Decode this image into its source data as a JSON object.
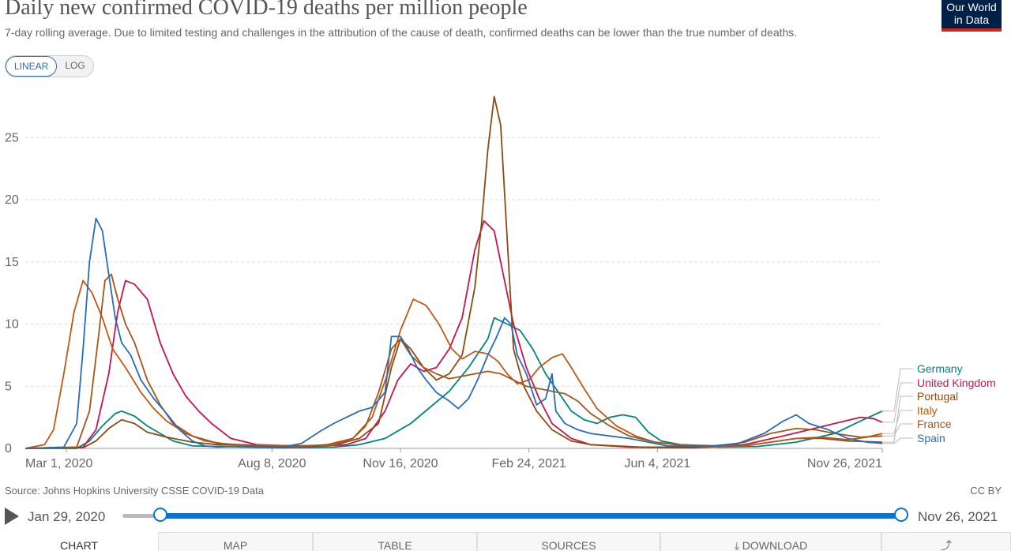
{
  "header": {
    "title": "Daily new confirmed COVID-19 deaths per million people",
    "subtitle": "7-day rolling average. Due to limited testing and challenges in the attribution of the cause of death, confirmed deaths can be lower than the true number of deaths.",
    "logo_line1": "Our World",
    "logo_line2": "in Data"
  },
  "controls": {
    "linear_label": "LINEAR",
    "log_label": "LOG",
    "active": "linear"
  },
  "colors": {
    "Germany": "#00847e",
    "United Kingdom": "#c8134f",
    "Portugal": "#8c4a13",
    "Italy": "#be5915",
    "France": "#a2561a",
    "Spain": "#286bbb",
    "grid": "#dddddd"
  },
  "chart_data": {
    "type": "line",
    "title": "Daily new confirmed COVID-19 deaths per million people",
    "xlabel": "",
    "ylabel": "",
    "x_range": [
      "2020-01-29",
      "2021-11-26"
    ],
    "ylim": [
      0,
      28.5
    ],
    "y_ticks": [
      0,
      5,
      10,
      15,
      20,
      25
    ],
    "x_tick_labels": [
      "Mar 1, 2020",
      "Aug 8, 2020",
      "Nov 16, 2020",
      "Feb 24, 2021",
      "Jun 4, 2021",
      "Nov 26, 2021"
    ],
    "x_tick_days": [
      32,
      192,
      292,
      392,
      492,
      667
    ],
    "legend_position": "right",
    "series": [
      {
        "name": "Germany",
        "points": [
          [
            0,
            0
          ],
          [
            40,
            0
          ],
          [
            50,
            0.6
          ],
          [
            60,
            1.8
          ],
          [
            70,
            2.8
          ],
          [
            75,
            3.0
          ],
          [
            85,
            2.6
          ],
          [
            95,
            1.8
          ],
          [
            105,
            1.2
          ],
          [
            115,
            0.6
          ],
          [
            130,
            0.2
          ],
          [
            200,
            0.05
          ],
          [
            240,
            0.1
          ],
          [
            260,
            0.3
          ],
          [
            280,
            0.8
          ],
          [
            300,
            2.0
          ],
          [
            315,
            3.3
          ],
          [
            330,
            4.6
          ],
          [
            345,
            6.5
          ],
          [
            360,
            8.8
          ],
          [
            365,
            10.5
          ],
          [
            375,
            10.0
          ],
          [
            385,
            9.5
          ],
          [
            395,
            8.0
          ],
          [
            405,
            6.0
          ],
          [
            415,
            4.5
          ],
          [
            425,
            3.0
          ],
          [
            435,
            2.3
          ],
          [
            445,
            2.0
          ],
          [
            455,
            2.5
          ],
          [
            465,
            2.7
          ],
          [
            475,
            2.5
          ],
          [
            485,
            1.3
          ],
          [
            495,
            0.6
          ],
          [
            510,
            0.3
          ],
          [
            540,
            0.1
          ],
          [
            570,
            0.15
          ],
          [
            600,
            0.5
          ],
          [
            630,
            1.2
          ],
          [
            650,
            2.2
          ],
          [
            667,
            3.0
          ]
        ]
      },
      {
        "name": "United Kingdom",
        "points": [
          [
            0,
            0
          ],
          [
            45,
            0.1
          ],
          [
            55,
            1.5
          ],
          [
            65,
            6.0
          ],
          [
            72,
            11.0
          ],
          [
            78,
            13.5
          ],
          [
            85,
            13.2
          ],
          [
            95,
            12.0
          ],
          [
            105,
            8.5
          ],
          [
            115,
            6.0
          ],
          [
            125,
            4.2
          ],
          [
            135,
            3.0
          ],
          [
            145,
            2.0
          ],
          [
            160,
            0.8
          ],
          [
            180,
            0.3
          ],
          [
            220,
            0.15
          ],
          [
            250,
            0.3
          ],
          [
            265,
            0.8
          ],
          [
            280,
            3.0
          ],
          [
            290,
            5.5
          ],
          [
            300,
            6.8
          ],
          [
            310,
            6.2
          ],
          [
            320,
            6.5
          ],
          [
            330,
            8.0
          ],
          [
            340,
            10.5
          ],
          [
            350,
            16.0
          ],
          [
            357,
            18.3
          ],
          [
            365,
            17.5
          ],
          [
            372,
            14.0
          ],
          [
            380,
            10.0
          ],
          [
            390,
            6.5
          ],
          [
            400,
            4.0
          ],
          [
            410,
            2.0
          ],
          [
            425,
            0.8
          ],
          [
            440,
            0.3
          ],
          [
            470,
            0.1
          ],
          [
            520,
            0.05
          ],
          [
            560,
            0.3
          ],
          [
            590,
            1.0
          ],
          [
            610,
            1.5
          ],
          [
            630,
            2.0
          ],
          [
            650,
            2.5
          ],
          [
            660,
            2.4
          ],
          [
            667,
            2.1
          ]
        ]
      },
      {
        "name": "Portugal",
        "points": [
          [
            0,
            0
          ],
          [
            45,
            0.05
          ],
          [
            55,
            0.6
          ],
          [
            65,
            1.6
          ],
          [
            75,
            2.3
          ],
          [
            85,
            2.0
          ],
          [
            95,
            1.3
          ],
          [
            110,
            0.9
          ],
          [
            130,
            0.5
          ],
          [
            150,
            0.3
          ],
          [
            200,
            0.2
          ],
          [
            240,
            0.25
          ],
          [
            260,
            0.8
          ],
          [
            275,
            2.0
          ],
          [
            285,
            6.5
          ],
          [
            292,
            8.8
          ],
          [
            300,
            8.0
          ],
          [
            310,
            6.5
          ],
          [
            320,
            5.5
          ],
          [
            330,
            6.0
          ],
          [
            340,
            7.5
          ],
          [
            350,
            13.0
          ],
          [
            355,
            18.0
          ],
          [
            360,
            24.0
          ],
          [
            365,
            28.3
          ],
          [
            370,
            26.0
          ],
          [
            375,
            17.0
          ],
          [
            380,
            8.0
          ],
          [
            388,
            5.0
          ],
          [
            398,
            3.0
          ],
          [
            410,
            1.5
          ],
          [
            425,
            0.6
          ],
          [
            440,
            0.3
          ],
          [
            480,
            0.1
          ],
          [
            530,
            0.1
          ],
          [
            560,
            0.2
          ],
          [
            580,
            0.5
          ],
          [
            600,
            0.8
          ],
          [
            620,
            0.8
          ],
          [
            640,
            0.6
          ],
          [
            667,
            0.5
          ]
        ]
      },
      {
        "name": "Italy",
        "points": [
          [
            0,
            0
          ],
          [
            15,
            0.3
          ],
          [
            22,
            1.5
          ],
          [
            30,
            6.0
          ],
          [
            38,
            11.0
          ],
          [
            45,
            13.5
          ],
          [
            52,
            12.5
          ],
          [
            60,
            10.5
          ],
          [
            68,
            8.0
          ],
          [
            78,
            6.5
          ],
          [
            90,
            4.5
          ],
          [
            100,
            3.2
          ],
          [
            110,
            2.2
          ],
          [
            125,
            1.2
          ],
          [
            140,
            0.6
          ],
          [
            160,
            0.3
          ],
          [
            220,
            0.2
          ],
          [
            240,
            0.3
          ],
          [
            255,
            0.8
          ],
          [
            270,
            2.5
          ],
          [
            282,
            6.0
          ],
          [
            292,
            9.5
          ],
          [
            302,
            12.0
          ],
          [
            312,
            11.5
          ],
          [
            322,
            10.0
          ],
          [
            332,
            8.0
          ],
          [
            340,
            7.2
          ],
          [
            350,
            7.8
          ],
          [
            360,
            7.6
          ],
          [
            368,
            7.0
          ],
          [
            375,
            6.0
          ],
          [
            383,
            5.2
          ],
          [
            392,
            5.5
          ],
          [
            400,
            6.5
          ],
          [
            410,
            7.3
          ],
          [
            418,
            7.6
          ],
          [
            425,
            6.5
          ],
          [
            435,
            4.8
          ],
          [
            445,
            3.2
          ],
          [
            460,
            1.8
          ],
          [
            475,
            1.0
          ],
          [
            490,
            0.5
          ],
          [
            510,
            0.25
          ],
          [
            540,
            0.15
          ],
          [
            560,
            0.2
          ],
          [
            580,
            0.5
          ],
          [
            600,
            0.8
          ],
          [
            620,
            0.9
          ],
          [
            640,
            0.7
          ],
          [
            655,
            0.9
          ],
          [
            667,
            1.2
          ]
        ]
      },
      {
        "name": "France",
        "points": [
          [
            0,
            0
          ],
          [
            40,
            0.1
          ],
          [
            50,
            3.0
          ],
          [
            57,
            9.0
          ],
          [
            62,
            13.5
          ],
          [
            67,
            14.0
          ],
          [
            72,
            12.0
          ],
          [
            78,
            10.0
          ],
          [
            85,
            8.5
          ],
          [
            95,
            5.5
          ],
          [
            105,
            3.5
          ],
          [
            115,
            2.0
          ],
          [
            130,
            1.0
          ],
          [
            150,
            0.4
          ],
          [
            200,
            0.1
          ],
          [
            235,
            0.3
          ],
          [
            255,
            0.8
          ],
          [
            265,
            1.8
          ],
          [
            275,
            4.5
          ],
          [
            285,
            8.0
          ],
          [
            292,
            8.8
          ],
          [
            300,
            7.5
          ],
          [
            310,
            6.5
          ],
          [
            320,
            6.0
          ],
          [
            330,
            5.6
          ],
          [
            340,
            5.8
          ],
          [
            350,
            6.0
          ],
          [
            360,
            6.2
          ],
          [
            370,
            6.0
          ],
          [
            380,
            5.5
          ],
          [
            390,
            5.0
          ],
          [
            400,
            4.8
          ],
          [
            410,
            4.6
          ],
          [
            420,
            4.4
          ],
          [
            430,
            3.8
          ],
          [
            440,
            2.8
          ],
          [
            455,
            1.8
          ],
          [
            470,
            1.0
          ],
          [
            490,
            0.5
          ],
          [
            510,
            0.3
          ],
          [
            540,
            0.2
          ],
          [
            560,
            0.5
          ],
          [
            580,
            1.2
          ],
          [
            600,
            1.6
          ],
          [
            615,
            1.5
          ],
          [
            630,
            1.2
          ],
          [
            650,
            0.9
          ],
          [
            667,
            1.0
          ]
        ]
      },
      {
        "name": "Spain",
        "points": [
          [
            0,
            0
          ],
          [
            30,
            0.1
          ],
          [
            40,
            2.0
          ],
          [
            45,
            8.0
          ],
          [
            50,
            15.0
          ],
          [
            55,
            18.5
          ],
          [
            60,
            17.5
          ],
          [
            65,
            14.0
          ],
          [
            70,
            10.5
          ],
          [
            75,
            8.5
          ],
          [
            82,
            7.5
          ],
          [
            90,
            5.5
          ],
          [
            100,
            4.0
          ],
          [
            110,
            2.8
          ],
          [
            120,
            1.5
          ],
          [
            130,
            0.6
          ],
          [
            140,
            0.2
          ],
          [
            150,
            0.1
          ],
          [
            160,
            0.15
          ],
          [
            180,
            0.15
          ],
          [
            200,
            0.1
          ],
          [
            215,
            0.4
          ],
          [
            230,
            1.4
          ],
          [
            240,
            2.0
          ],
          [
            250,
            2.5
          ],
          [
            260,
            3.0
          ],
          [
            270,
            3.3
          ],
          [
            280,
            4.5
          ],
          [
            285,
            9.0
          ],
          [
            292,
            9.0
          ],
          [
            298,
            8.0
          ],
          [
            305,
            6.5
          ],
          [
            312,
            5.5
          ],
          [
            320,
            4.5
          ],
          [
            330,
            3.8
          ],
          [
            337,
            3.2
          ],
          [
            345,
            4.0
          ],
          [
            352,
            5.5
          ],
          [
            360,
            7.5
          ],
          [
            367,
            9.0
          ],
          [
            373,
            10.5
          ],
          [
            378,
            10.0
          ],
          [
            383,
            7.5
          ],
          [
            390,
            6.0
          ],
          [
            398,
            3.5
          ],
          [
            405,
            4.0
          ],
          [
            410,
            6.0
          ],
          [
            413,
            3.0
          ],
          [
            420,
            2.0
          ],
          [
            430,
            1.5
          ],
          [
            440,
            1.2
          ],
          [
            455,
            1.0
          ],
          [
            470,
            0.8
          ],
          [
            485,
            0.5
          ],
          [
            500,
            0.2
          ],
          [
            530,
            0.15
          ],
          [
            555,
            0.4
          ],
          [
            575,
            1.2
          ],
          [
            590,
            2.2
          ],
          [
            600,
            2.7
          ],
          [
            610,
            2.0
          ],
          [
            625,
            1.5
          ],
          [
            640,
            0.8
          ],
          [
            655,
            0.5
          ],
          [
            667,
            0.4
          ]
        ]
      }
    ]
  },
  "labels": {
    "legend": [
      "Germany",
      "United Kingdom",
      "Portugal",
      "Italy",
      "France",
      "Spain"
    ]
  },
  "footer": {
    "source": "Source: Johns Hopkins University CSSE COVID-19 Data",
    "license": "CC BY"
  },
  "timeline": {
    "start_date": "Jan 29, 2020",
    "end_date": "Nov 26, 2021"
  },
  "tabs": [
    {
      "label": "CHART",
      "active": true
    },
    {
      "label": "MAP",
      "active": false
    },
    {
      "label": "TABLE",
      "active": false
    },
    {
      "label": "SOURCES",
      "active": false
    },
    {
      "label": "⤓ DOWNLOAD",
      "active": false
    },
    {
      "label": "⤴",
      "active": false
    }
  ]
}
